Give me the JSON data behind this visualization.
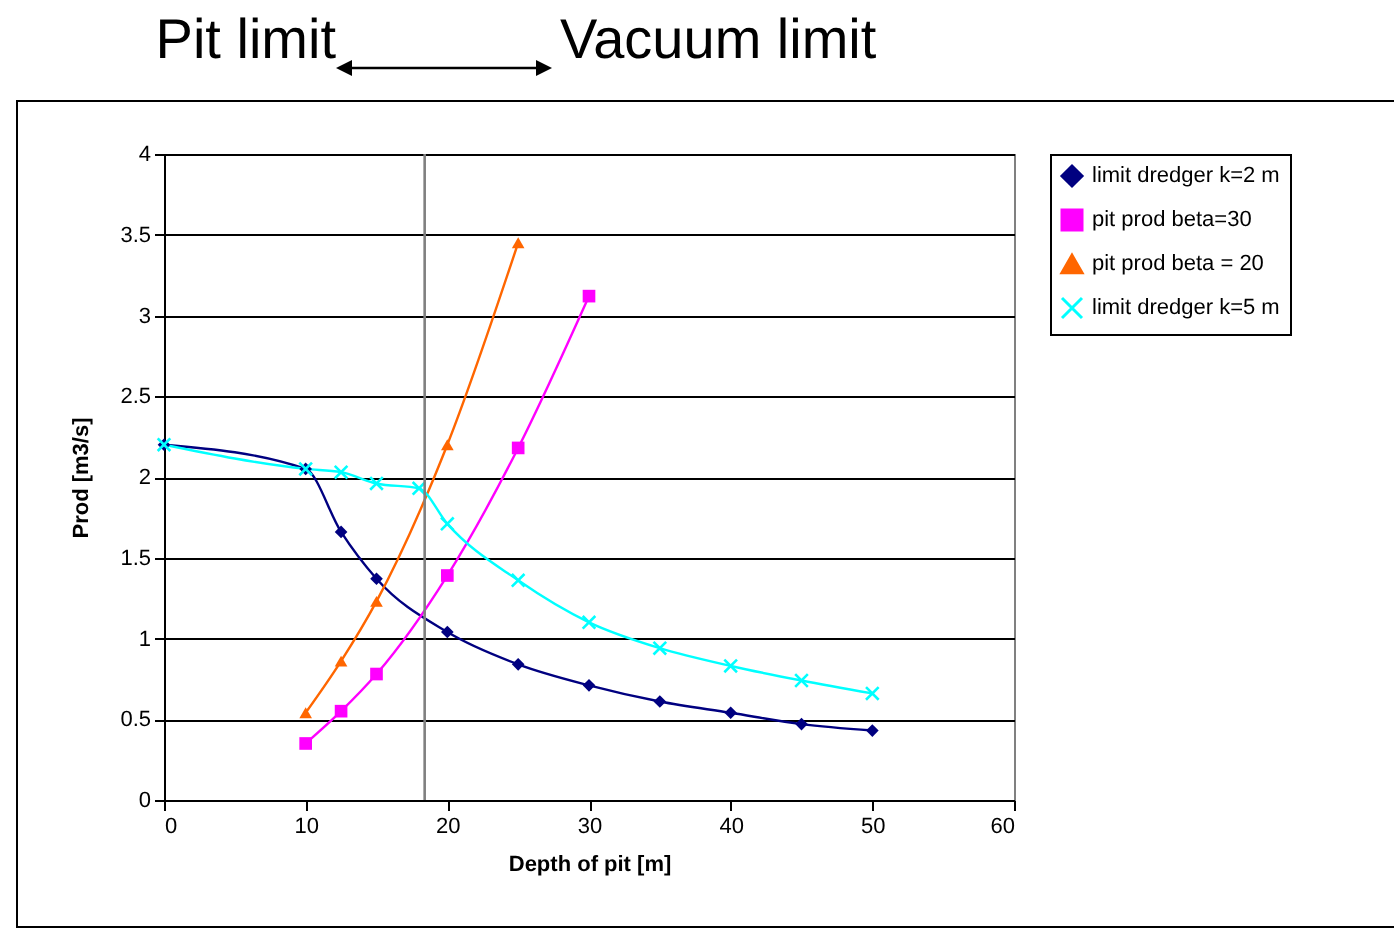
{
  "chart_data": {
    "type": "line",
    "xlabel": "Depth of pit [m]",
    "ylabel": "Prod  [m3/s]",
    "annotations": [
      "Pit limit",
      "Vacuum limit"
    ],
    "xlim": [
      0,
      60
    ],
    "xticks": [
      0,
      10,
      20,
      30,
      40,
      50,
      60
    ],
    "ylim": [
      0,
      4
    ],
    "yticks": [
      0,
      0.5,
      1,
      1.5,
      2,
      2.5,
      3,
      3.5,
      4
    ],
    "grid": "y",
    "legend": "right",
    "series": [
      {
        "name": "limit dredger k=2 m",
        "color": "#000080",
        "marker": "diamond",
        "x": [
          0,
          10,
          12.5,
          15,
          20,
          25,
          30,
          35,
          40,
          45,
          50
        ],
        "values": [
          2.2,
          2.05,
          1.66,
          1.37,
          1.04,
          0.84,
          0.71,
          0.61,
          0.54,
          0.47,
          0.43
        ]
      },
      {
        "name": "pit prod beta=30",
        "color": "#ff00ff",
        "marker": "square",
        "x": [
          10,
          12.5,
          15,
          20,
          25,
          30
        ],
        "values": [
          0.35,
          0.55,
          0.78,
          1.39,
          2.18,
          3.12
        ]
      },
      {
        "name": "pit prod beta = 20",
        "color": "#ff6600",
        "marker": "triangle",
        "x": [
          10,
          12.5,
          15,
          20,
          25
        ],
        "values": [
          0.54,
          0.86,
          1.23,
          2.2,
          3.45
        ]
      },
      {
        "name": "limit dredger k=5 m",
        "color": "#00ffff",
        "marker": "cross",
        "x": [
          0,
          10,
          12.5,
          15,
          18,
          20,
          25,
          30,
          35,
          40,
          45,
          50
        ],
        "values": [
          2.2,
          2.05,
          2.03,
          1.96,
          1.93,
          1.71,
          1.36,
          1.1,
          0.94,
          0.83,
          0.74,
          0.66
        ]
      }
    ],
    "ref_lines": [
      {
        "axis": "x",
        "value": 18.4,
        "color": "#808080"
      }
    ]
  }
}
